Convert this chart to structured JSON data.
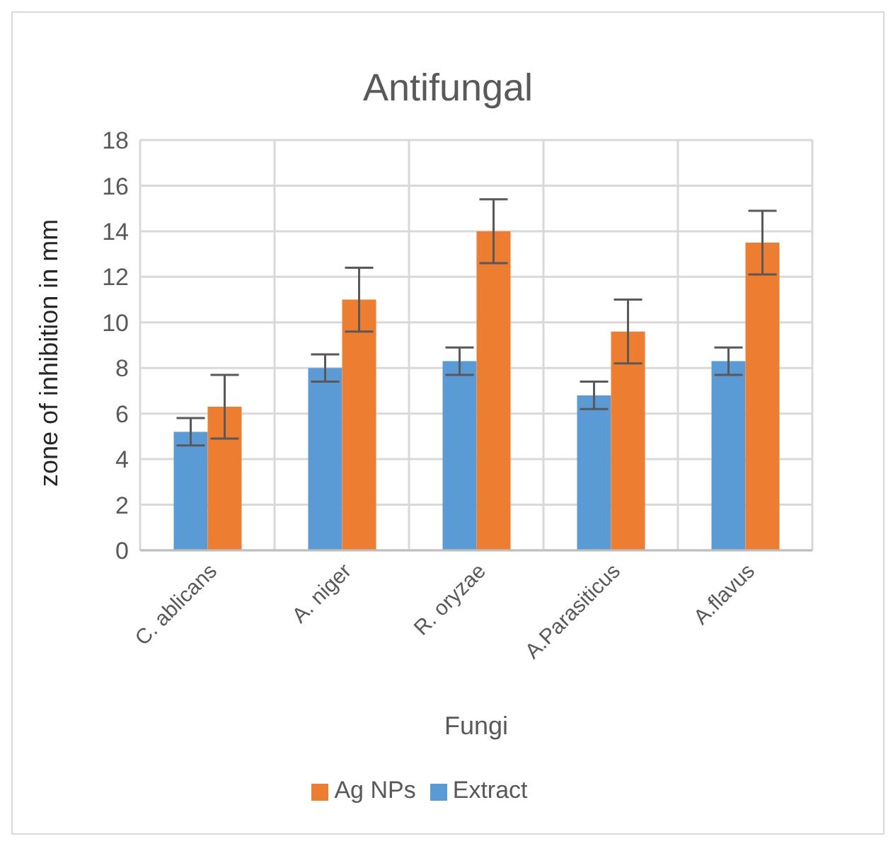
{
  "chart_data": {
    "type": "bar",
    "title": "Antifungal",
    "xlabel": "Fungi",
    "ylabel": "zone of inhibition in mm",
    "categories": [
      "C. ablicans",
      "A. niger",
      "R. oryzae",
      "A.Parasiticus",
      "A.flavus"
    ],
    "series": [
      {
        "name": "Extract",
        "color": "#5b9bd5",
        "values": [
          5.2,
          8.0,
          8.3,
          6.8,
          8.3
        ],
        "errors": [
          0.6,
          0.6,
          0.6,
          0.6,
          0.6
        ]
      },
      {
        "name": "Ag NPs",
        "color": "#ed7d31",
        "values": [
          6.3,
          11.0,
          14.0,
          9.6,
          13.5
        ],
        "errors": [
          1.4,
          1.4,
          1.4,
          1.4,
          1.4
        ]
      }
    ],
    "ylim": [
      0,
      18
    ],
    "yticks": [
      0,
      2,
      4,
      6,
      8,
      10,
      12,
      14,
      16,
      18
    ],
    "grid": true,
    "legend": "bottom"
  }
}
